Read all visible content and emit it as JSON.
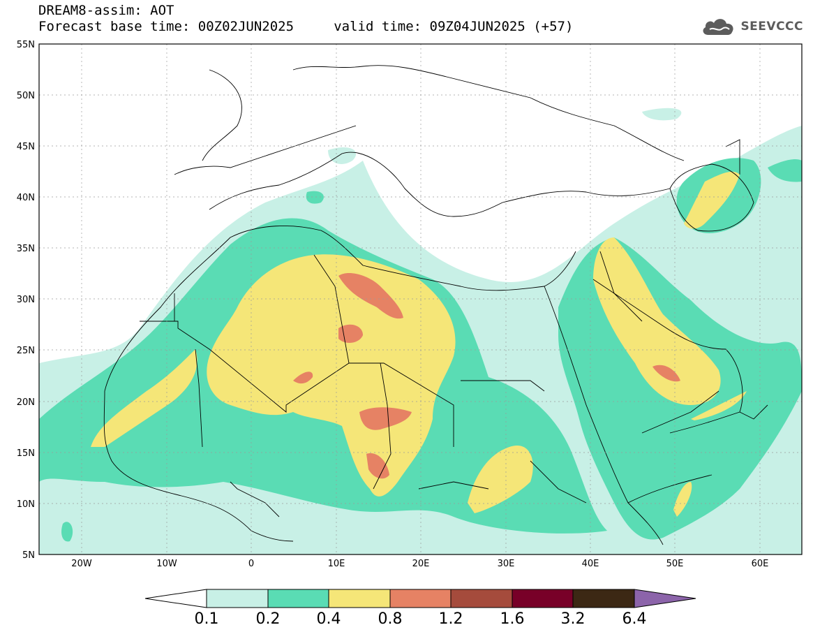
{
  "header": {
    "title": "DREAM8-assim: AOT",
    "subtitle": "Forecast base time: 00Z02JUN2025     valid time: 09Z04JUN2025 (+57)"
  },
  "logo": {
    "icon": "cloud-icon",
    "text": "SEEVCCC"
  },
  "map": {
    "lat_labels": [
      "55N",
      "50N",
      "45N",
      "40N",
      "35N",
      "30N",
      "25N",
      "20N",
      "15N",
      "10N",
      "5N"
    ],
    "lon_labels": [
      "20W",
      "10W",
      "0",
      "10E",
      "20E",
      "30E",
      "40E",
      "50E",
      "60E"
    ],
    "lat_range": [
      5,
      55
    ],
    "lon_range": [
      -25,
      65
    ],
    "gridlines": true
  },
  "colorbar": {
    "labels": [
      "0.1",
      "0.2",
      "0.4",
      "0.8",
      "1.2",
      "1.6",
      "3.2",
      "6.4"
    ],
    "colors": [
      "#ffffff",
      "#c8f0e6",
      "#5adcb4",
      "#f5e678",
      "#e68264",
      "#a54b3c",
      "#780028",
      "#3c2814",
      "#8c64aa"
    ]
  }
}
